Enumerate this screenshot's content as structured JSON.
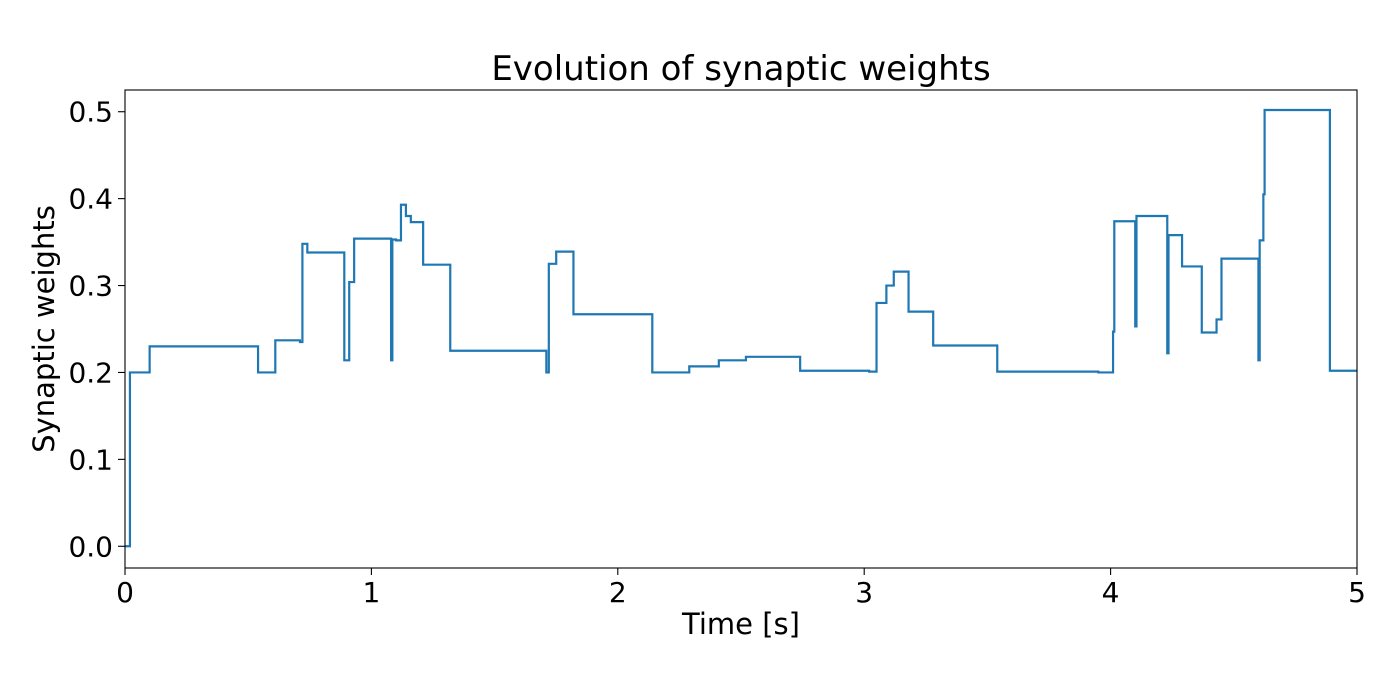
{
  "chart_data": {
    "type": "line",
    "title": "Evolution of synaptic weights",
    "xlabel": "Time [s]",
    "ylabel": "Synaptic weights",
    "xlim": [
      0,
      5
    ],
    "ylim": [
      -0.025,
      0.525
    ],
    "xticks": [
      0,
      1,
      2,
      3,
      4,
      5
    ],
    "xtick_labels": [
      "0",
      "1",
      "2",
      "3",
      "4",
      "5"
    ],
    "yticks": [
      0.0,
      0.1,
      0.2,
      0.3,
      0.4,
      0.5
    ],
    "ytick_labels": [
      "0.0",
      "0.1",
      "0.2",
      "0.3",
      "0.4",
      "0.5"
    ],
    "grid": false,
    "legend": false,
    "step": "post",
    "line_color": "#1f77b4",
    "x": [
      0,
      0.02,
      0.1,
      0.54,
      0.61,
      0.71,
      0.72,
      0.74,
      0.89,
      0.91,
      0.93,
      1.08,
      1.085,
      1.09,
      1.1,
      1.12,
      1.14,
      1.16,
      1.21,
      1.32,
      1.71,
      1.715,
      1.72,
      1.73,
      1.75,
      1.82,
      2.14,
      2.29,
      2.41,
      2.52,
      2.74,
      3.02,
      3.05,
      3.09,
      3.12,
      3.18,
      3.28,
      3.54,
      3.95,
      4.01,
      4.015,
      4.02,
      4.1,
      4.105,
      4.11,
      4.23,
      4.235,
      4.24,
      4.29,
      4.37,
      4.43,
      4.45,
      4.6,
      4.605,
      4.61,
      4.62,
      4.625,
      4.63,
      4.89,
      5.0
    ],
    "y": [
      0.0,
      0.2,
      0.23,
      0.2,
      0.237,
      0.235,
      0.348,
      0.338,
      0.214,
      0.304,
      0.354,
      0.214,
      0.353,
      0.353,
      0.352,
      0.393,
      0.38,
      0.373,
      0.324,
      0.225,
      0.2,
      0.2,
      0.325,
      0.325,
      0.339,
      0.267,
      0.2,
      0.207,
      0.214,
      0.218,
      0.202,
      0.201,
      0.28,
      0.3,
      0.316,
      0.27,
      0.231,
      0.201,
      0.2,
      0.247,
      0.374,
      0.374,
      0.253,
      0.38,
      0.38,
      0.222,
      0.358,
      0.358,
      0.322,
      0.246,
      0.261,
      0.331,
      0.214,
      0.352,
      0.352,
      0.405,
      0.502,
      0.502,
      0.202,
      0.202
    ]
  }
}
